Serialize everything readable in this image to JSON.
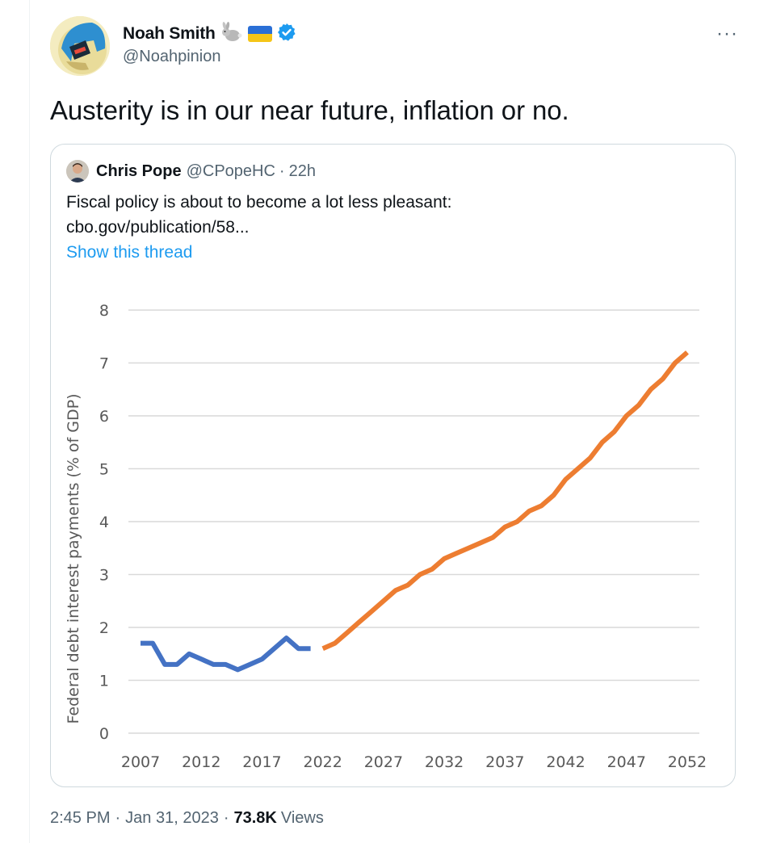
{
  "tweet": {
    "author": {
      "display_name": "Noah Smith",
      "handle": "@Noahpinion",
      "emoji_icons": [
        "rabbit-icon",
        "ukraine-flag-icon"
      ],
      "verified": true
    },
    "text": "Austerity is in our near future, inflation or no.",
    "timestamp": "2:45 PM",
    "date": "Jan 31, 2023",
    "views_count": "73.8K",
    "views_label": "Views",
    "separator": "·"
  },
  "quote": {
    "author": {
      "display_name": "Chris Pope",
      "handle": "@CPopeHC",
      "time": "22h"
    },
    "text_line1": "Fiscal policy is about to become a lot less pleasant:",
    "text_line2": "cbo.gov/publication/58...",
    "show_thread": "Show this thread"
  },
  "colors": {
    "accent": "#1d9bf0",
    "historical_series": "#4472c4",
    "projected_series": "#ed7d31",
    "grid": "#d9d9d9",
    "axis_text": "#595959"
  },
  "chart_data": {
    "type": "line",
    "title": "",
    "xlabel": "",
    "ylabel": "Federal debt interest payments (% of GDP)",
    "xlim": [
      2006,
      2053
    ],
    "ylim": [
      0,
      8
    ],
    "x_ticks": [
      2007,
      2012,
      2017,
      2022,
      2027,
      2032,
      2037,
      2042,
      2047,
      2052
    ],
    "y_ticks": [
      0,
      1,
      2,
      3,
      4,
      5,
      6,
      7,
      8
    ],
    "grid": true,
    "legend": "none",
    "series": [
      {
        "color": "#4472c4",
        "x": [
          2007,
          2008,
          2009,
          2010,
          2011,
          2012,
          2013,
          2014,
          2015,
          2016,
          2017,
          2018,
          2019,
          2020,
          2021
        ],
        "y": [
          1.7,
          1.7,
          1.3,
          1.3,
          1.5,
          1.4,
          1.3,
          1.3,
          1.2,
          1.3,
          1.4,
          1.6,
          1.8,
          1.6,
          1.6
        ]
      },
      {
        "color": "#ed7d31",
        "x": [
          2022,
          2023,
          2024,
          2025,
          2026,
          2027,
          2028,
          2029,
          2030,
          2031,
          2032,
          2033,
          2034,
          2035,
          2036,
          2037,
          2038,
          2039,
          2040,
          2041,
          2042,
          2043,
          2044,
          2045,
          2046,
          2047,
          2048,
          2049,
          2050,
          2051,
          2052
        ],
        "y": [
          1.6,
          1.7,
          1.9,
          2.1,
          2.3,
          2.5,
          2.7,
          2.8,
          3.0,
          3.1,
          3.3,
          3.4,
          3.5,
          3.6,
          3.7,
          3.9,
          4.0,
          4.2,
          4.3,
          4.5,
          4.8,
          5.0,
          5.2,
          5.5,
          5.7,
          6.0,
          6.2,
          6.5,
          6.7,
          7.0,
          7.2
        ]
      }
    ]
  }
}
